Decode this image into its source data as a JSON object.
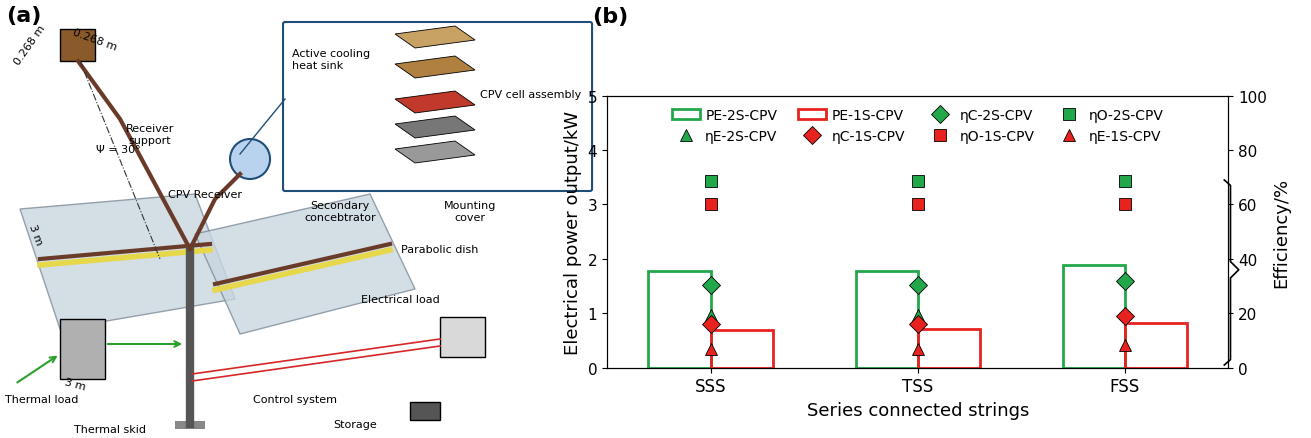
{
  "diagram": {
    "panel_label": "(a)",
    "labels": [
      "0.268 m",
      "0.268 m",
      "Ψ = 30°",
      "Receiver\nsupport",
      "CPV Receiver",
      "Active cooling\nheat sink",
      "CPV cell assembly",
      "Secondary\nconcebtrator",
      "Mounting\ncover",
      "3 m",
      "3 m",
      "Parabolic dish",
      "Electrical load",
      "Control system",
      "Storage",
      "Thermal load",
      "Thermal skid"
    ]
  },
  "chart_data": {
    "type": "bar",
    "panel_label": "(b)",
    "x_label": "Series connected strings",
    "y_label": "Electrical power output/kW",
    "y2_label": "Efficiency/%",
    "categories": [
      "SSS",
      "TSS",
      "FSS"
    ],
    "ylim": [
      0,
      5
    ],
    "yticks": [
      0,
      1,
      2,
      3,
      4,
      5
    ],
    "y2lim": [
      0,
      100
    ],
    "y2ticks": [
      0,
      20,
      40,
      60,
      80,
      100
    ],
    "legend": "upper center",
    "series": [
      {
        "name": "PE-2S-CPV",
        "type": "bar",
        "color": "#22a84a",
        "values": [
          1.78,
          1.78,
          1.88
        ]
      },
      {
        "name": "PE-1S-CPV",
        "type": "bar",
        "color": "#e8231f",
        "values": [
          0.7,
          0.72,
          0.82
        ]
      },
      {
        "name": "ηC-2S-CPV",
        "type": "scatter",
        "marker": "diamond",
        "color": "#22a84a",
        "axis": "y2",
        "values": [
          30.5,
          30.5,
          32
        ]
      },
      {
        "name": "ηO-2S-CPV",
        "type": "scatter",
        "marker": "square",
        "color": "#22a84a",
        "axis": "y2",
        "values": [
          68.5,
          68.5,
          68.5
        ]
      },
      {
        "name": "ηE-2S-CPV",
        "type": "scatter",
        "marker": "triangle",
        "color": "#22a84a",
        "axis": "y2",
        "values": [
          19.5,
          19.5,
          20
        ]
      },
      {
        "name": "ηC-1S-CPV",
        "type": "scatter",
        "marker": "diamond",
        "color": "#e8231f",
        "axis": "y2",
        "values": [
          16,
          16,
          19
        ]
      },
      {
        "name": "ηO-1S-CPV",
        "type": "scatter",
        "marker": "square",
        "color": "#e8231f",
        "axis": "y2",
        "values": [
          60,
          60,
          60
        ]
      },
      {
        "name": "ηE-1S-CPV",
        "type": "scatter",
        "marker": "triangle",
        "color": "#e8231f",
        "axis": "y2",
        "values": [
          7,
          7,
          8.4
        ]
      }
    ]
  }
}
